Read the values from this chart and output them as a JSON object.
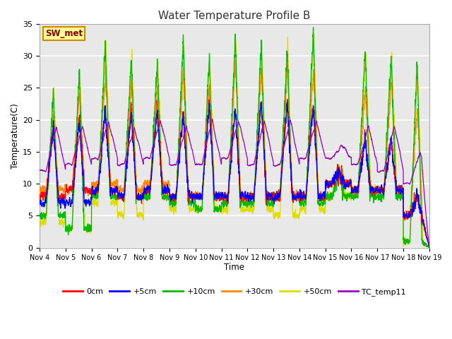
{
  "title": "Water Temperature Profile B",
  "xlabel": "Time",
  "ylabel": "Temperature(C)",
  "annotation": "SW_met",
  "ylim": [
    0,
    35
  ],
  "legend_labels": [
    "0cm",
    "+5cm",
    "+10cm",
    "+30cm",
    "+50cm",
    "TC_temp11"
  ],
  "line_colors": [
    "#ff0000",
    "#0000ff",
    "#00bb00",
    "#ff8800",
    "#dddd00",
    "#9900bb"
  ],
  "x_tick_labels": [
    "Nov 4",
    "Nov 5",
    "Nov 6",
    "Nov 7",
    "Nov 8",
    "Nov 9",
    "Nov 10",
    "Nov 11",
    "Nov 12",
    "Nov 13",
    "Nov 14",
    "Nov 15",
    "Nov 16",
    "Nov 17",
    "Nov 18",
    "Nov 19"
  ],
  "num_days": 15,
  "points_per_day": 288,
  "fig_width": 6.4,
  "fig_height": 4.8,
  "dpi": 100
}
